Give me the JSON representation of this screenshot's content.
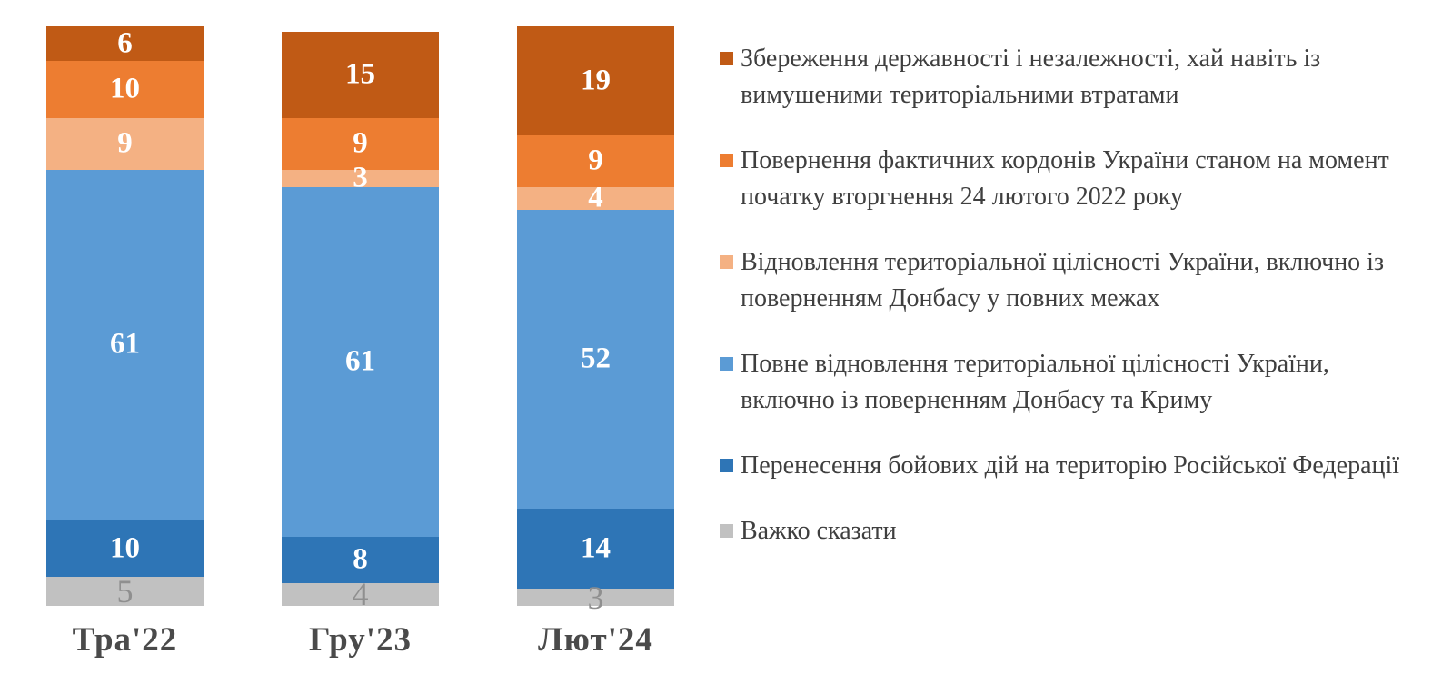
{
  "chart_data": {
    "type": "bar",
    "subtype": "stacked-column-percent",
    "title": "",
    "xlabel": "",
    "ylabel": "",
    "legend_position": "right",
    "grid": false,
    "categories": [
      "Тра'22",
      "Гру'23",
      "Лют'24"
    ],
    "series": [
      {
        "name": "Збереження державності і незалежності, хай навіть із вимушеними територіальними втратами",
        "color": "#C05A15",
        "label_color": "#ffffff",
        "values": [
          6,
          15,
          19
        ]
      },
      {
        "name": "Повернення фактичних кордонів України станом на момент початку вторгнення 24 лютого 2022 року",
        "color": "#ED7D31",
        "label_color": "#ffffff",
        "values": [
          10,
          9,
          9
        ]
      },
      {
        "name": "Відновлення територіальної цілісності України, включно із поверненням Донбасу у повних межах",
        "color": "#F4B183",
        "label_color": "#ffffff",
        "values": [
          9,
          3,
          4
        ]
      },
      {
        "name": "Повне відновлення територіальної цілісності України, включно із поверненням Донбасу та Криму",
        "color": "#5B9BD5",
        "label_color": "#ffffff",
        "values": [
          61,
          61,
          52
        ]
      },
      {
        "name": "Перенесення бойових дій на територію Російської Федерації",
        "color": "#2E75B6",
        "label_color": "#ffffff",
        "values": [
          10,
          8,
          14
        ]
      },
      {
        "name": "Важко сказати",
        "color": "#C1C1C1",
        "label_color": "#8F8F8F",
        "values": [
          5,
          4,
          3
        ]
      }
    ],
    "axis_label_color": "#4a4a4a",
    "legend_text_color": "#3f3f3f"
  }
}
